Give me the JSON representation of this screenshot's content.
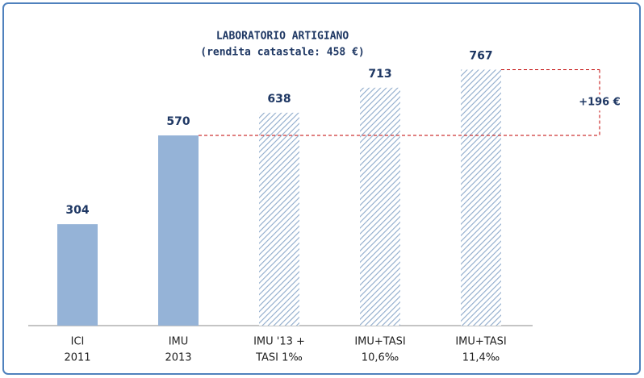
{
  "chart_data": {
    "type": "bar",
    "title": [
      "LABORATORIO ARTIGIANO",
      "(rendita catastale: 458 €)"
    ],
    "categories": [
      [
        "ICI",
        "2011"
      ],
      [
        "IMU",
        "2013"
      ],
      [
        "IMU '13 +",
        "TASI 1‰"
      ],
      [
        "IMU+TASI",
        "10,6‰"
      ],
      [
        "IMU+TASI",
        "11,4‰"
      ]
    ],
    "values": [
      304,
      570,
      638,
      713,
      767
    ],
    "fills": [
      "solid",
      "solid",
      "hatch",
      "hatch",
      "hatch"
    ],
    "color": "#95b3d7",
    "annotation": "+196 €"
  }
}
